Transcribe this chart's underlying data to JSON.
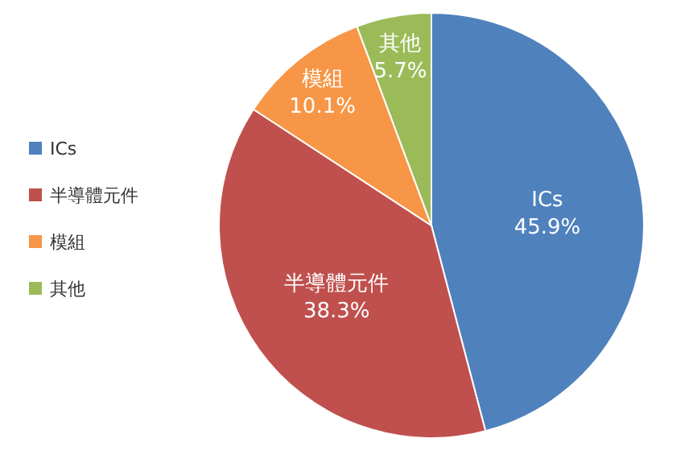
{
  "chart_data": {
    "type": "pie",
    "categories": [
      "ICs",
      "半導體元件",
      "模組",
      "其他"
    ],
    "values": [
      45.9,
      38.3,
      10.1,
      5.7
    ],
    "colors": [
      "#4f81bd",
      "#c0504d",
      "#f79646",
      "#9bbb59"
    ],
    "value_labels": [
      "45.9%",
      "38.3%",
      "10.1%",
      "5.7%"
    ],
    "legend": "left"
  }
}
